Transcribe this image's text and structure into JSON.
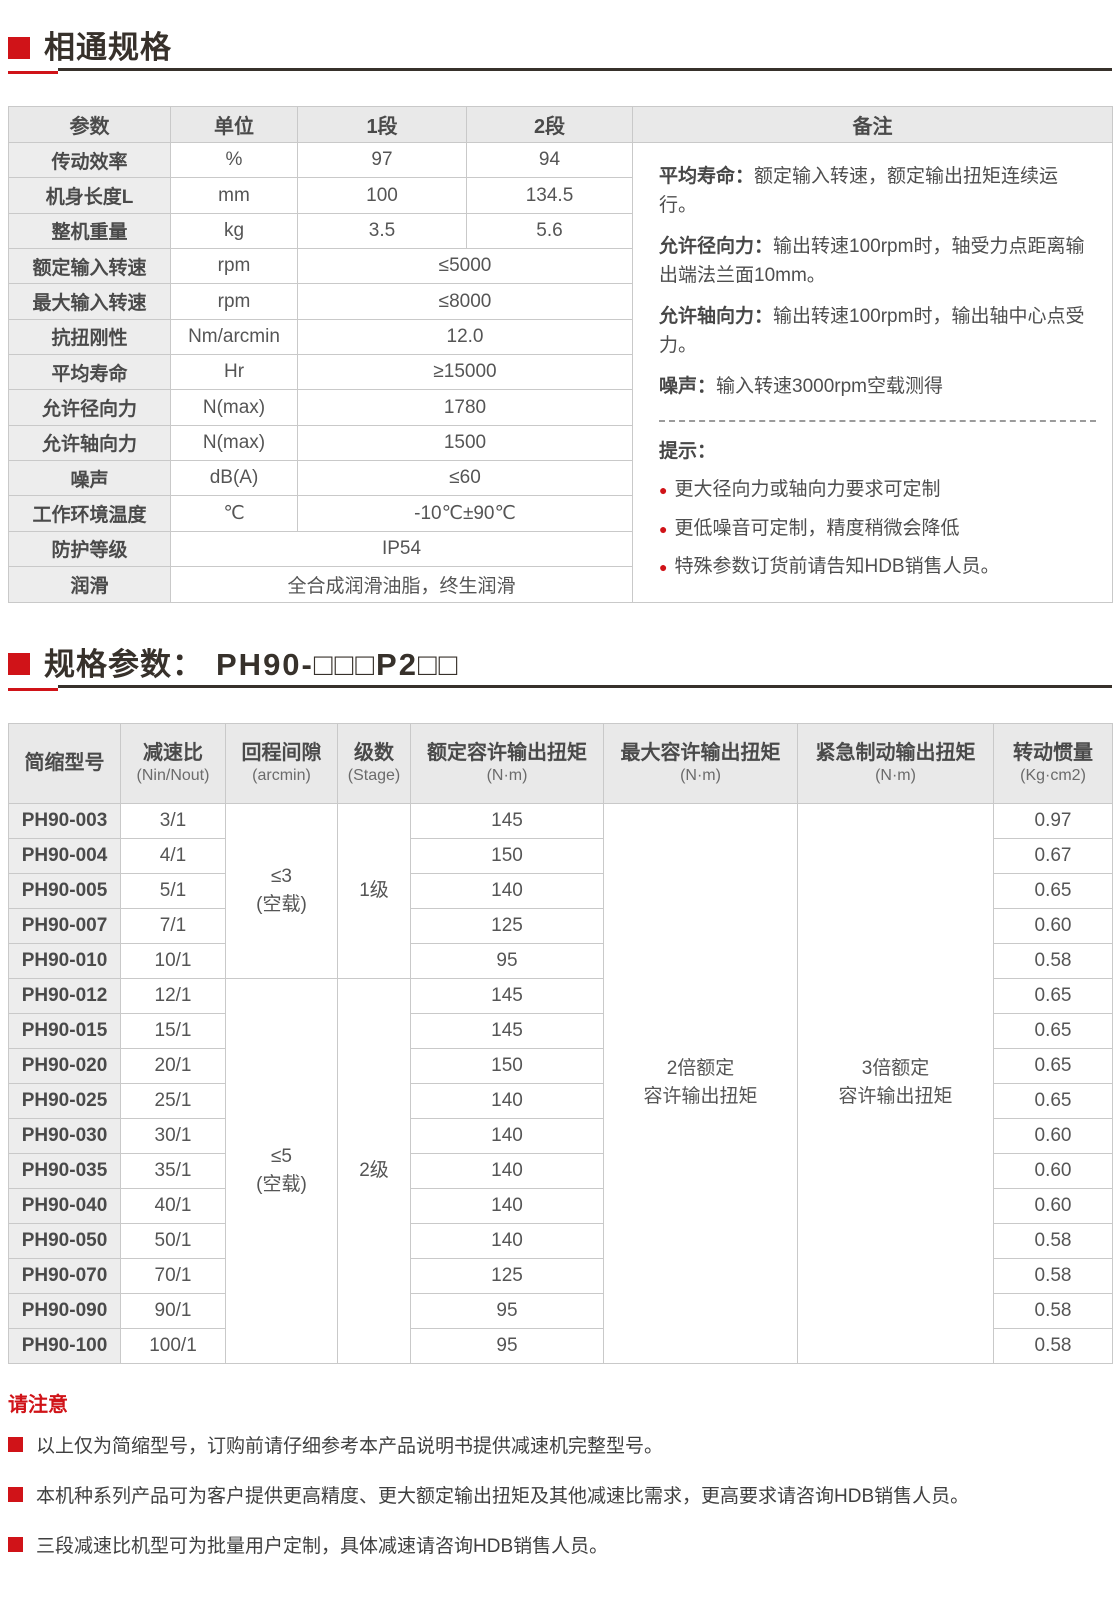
{
  "colors": {
    "accent_red": "#d01318",
    "title_ink": "#37312b",
    "table_header_bg": "#e9e9e9",
    "label_column_bg": "#ededed",
    "border": "#c9c9c9"
  },
  "section_common": {
    "title": "相通规格"
  },
  "common_table": {
    "headers": [
      "参数",
      "单位",
      "1段",
      "2段",
      "备注"
    ],
    "rows": [
      {
        "param": "传动效率",
        "unit": "%",
        "v1": "97",
        "v2": "94"
      },
      {
        "param": "机身长度L",
        "unit": "mm",
        "v1": "100",
        "v2": "134.5"
      },
      {
        "param": "整机重量",
        "unit": "kg",
        "v1": "3.5",
        "v2": "5.6"
      },
      {
        "param": "额定输入转速",
        "unit": "rpm",
        "span": "≤5000"
      },
      {
        "param": "最大输入转速",
        "unit": "rpm",
        "span": "≤8000"
      },
      {
        "param": "抗扭刚性",
        "unit": "Nm/arcmin",
        "span": "12.0"
      },
      {
        "param": "平均寿命",
        "unit": "Hr",
        "span": "≥15000"
      },
      {
        "param": "允许径向力",
        "unit": "N(max)",
        "span": "1780"
      },
      {
        "param": "允许轴向力",
        "unit": "N(max)",
        "span": "1500"
      },
      {
        "param": "噪声",
        "unit": "dB(A)",
        "span": "≤60"
      },
      {
        "param": "工作环境温度",
        "unit": "℃",
        "span": "-10℃±90℃"
      },
      {
        "param": "防护等级",
        "full": "IP54"
      },
      {
        "param": "润滑",
        "full": "全合成润滑油脂，终生润滑"
      }
    ]
  },
  "remark": {
    "paragraphs": [
      {
        "label": "平均寿命：",
        "text": "额定输入转速，额定输出扭矩连续运行。"
      },
      {
        "label": "允许径向力：",
        "text": "输出转速100rpm时，轴受力点距离输出端法兰面10mm。"
      },
      {
        "label": "允许轴向力：",
        "text": "输出转速100rpm时，输出轴中心点受力。"
      },
      {
        "label": "噪声：",
        "text": "输入转速3000rpm空载测得"
      }
    ],
    "tips_title": "提示：",
    "tips": [
      "更大径向力或轴向力要求可定制",
      "更低噪音可定制，精度稍微会降低",
      "特殊参数订货前请告知HDB销售人员。"
    ]
  },
  "section_spec": {
    "title": "规格参数：",
    "model_code": "PH90-□□□P2□□"
  },
  "spec_table": {
    "headers": [
      {
        "main": "简缩型号",
        "sub": ""
      },
      {
        "main": "减速比",
        "sub": "(Nin/Nout)"
      },
      {
        "main": "回程间隙",
        "sub": "(arcmin)"
      },
      {
        "main": "级数",
        "sub": "(Stage)"
      },
      {
        "main": "额定容许输出扭矩",
        "sub": "(N·m)"
      },
      {
        "main": "最大容许输出扭矩",
        "sub": "(N·m)"
      },
      {
        "main": "紧急制动输出扭矩",
        "sub": "(N·m)"
      },
      {
        "main": "转动惯量",
        "sub": "(Kg·cm2)"
      }
    ],
    "max_torque": "2倍额定\n容许输出扭矩",
    "brake_torque": "3倍额定\n容许输出扭矩",
    "groups": [
      {
        "backlash": "≤3\n(空载)",
        "stage": "1级",
        "rows": [
          {
            "model": "PH90-003",
            "ratio": "3/1",
            "torque": "145",
            "inertia": "0.97"
          },
          {
            "model": "PH90-004",
            "ratio": "4/1",
            "torque": "150",
            "inertia": "0.67"
          },
          {
            "model": "PH90-005",
            "ratio": "5/1",
            "torque": "140",
            "inertia": "0.65"
          },
          {
            "model": "PH90-007",
            "ratio": "7/1",
            "torque": "125",
            "inertia": "0.60"
          },
          {
            "model": "PH90-010",
            "ratio": "10/1",
            "torque": "95",
            "inertia": "0.58"
          }
        ]
      },
      {
        "backlash": "≤5\n(空载)",
        "stage": "2级",
        "rows": [
          {
            "model": "PH90-012",
            "ratio": "12/1",
            "torque": "145",
            "inertia": "0.65"
          },
          {
            "model": "PH90-015",
            "ratio": "15/1",
            "torque": "145",
            "inertia": "0.65"
          },
          {
            "model": "PH90-020",
            "ratio": "20/1",
            "torque": "150",
            "inertia": "0.65"
          },
          {
            "model": "PH90-025",
            "ratio": "25/1",
            "torque": "140",
            "inertia": "0.65"
          },
          {
            "model": "PH90-030",
            "ratio": "30/1",
            "torque": "140",
            "inertia": "0.60"
          },
          {
            "model": "PH90-035",
            "ratio": "35/1",
            "torque": "140",
            "inertia": "0.60"
          },
          {
            "model": "PH90-040",
            "ratio": "40/1",
            "torque": "140",
            "inertia": "0.60"
          },
          {
            "model": "PH90-050",
            "ratio": "50/1",
            "torque": "140",
            "inertia": "0.58"
          },
          {
            "model": "PH90-070",
            "ratio": "70/1",
            "torque": "125",
            "inertia": "0.58"
          },
          {
            "model": "PH90-090",
            "ratio": "90/1",
            "torque": "95",
            "inertia": "0.58"
          },
          {
            "model": "PH90-100",
            "ratio": "100/1",
            "torque": "95",
            "inertia": "0.58"
          }
        ]
      }
    ]
  },
  "footer": {
    "title": "请注意",
    "items": [
      "以上仅为简缩型号，订购前请仔细参考本产品说明书提供减速机完整型号。",
      "本机种系列产品可为客户提供更高精度、更大额定输出扭矩及其他减速比需求，更高要求请咨询HDB销售人员。",
      "三段减速比机型可为批量用户定制，具体减速请咨询HDB销售人员。"
    ]
  }
}
